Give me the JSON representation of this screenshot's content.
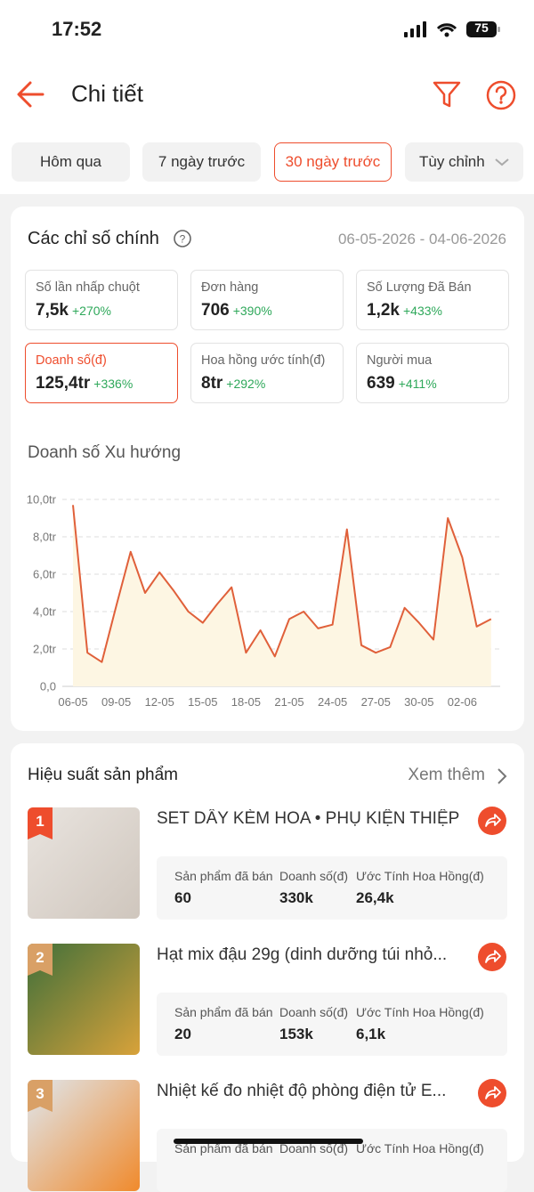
{
  "status_bar": {
    "time": "17:52",
    "battery": "75"
  },
  "header": {
    "title": "Chi tiết"
  },
  "tabs": {
    "items": [
      "Hôm qua",
      "7 ngày trước",
      "30 ngày trước",
      "Tùy chỉnh"
    ],
    "active": 2
  },
  "metrics": {
    "title": "Các chỉ số chính",
    "date_range": "06-05-2026 - 04-06-2026",
    "selected": 3,
    "cards": [
      {
        "label": "Số lần nhấp chuột",
        "value": "7,5k",
        "change": "+270%"
      },
      {
        "label": "Đơn hàng",
        "value": "706",
        "change": "+390%"
      },
      {
        "label": "Số Lượng Đã Bán",
        "value": "1,2k",
        "change": "+433%"
      },
      {
        "label": "Doanh số(đ)",
        "value": "125,4tr",
        "change": "+336%"
      },
      {
        "label": "Hoa hồng ước tính(đ)",
        "value": "8tr",
        "change": "+292%"
      },
      {
        "label": "Người mua",
        "value": "639",
        "change": "+411%"
      }
    ]
  },
  "chart_data": {
    "type": "line",
    "title": "Doanh số Xu hướng",
    "categories": [
      "06-05",
      null,
      null,
      "09-05",
      null,
      null,
      "12-05",
      null,
      null,
      "15-05",
      null,
      null,
      "18-05",
      null,
      null,
      "21-05",
      null,
      null,
      "24-05",
      null,
      null,
      "27-05",
      null,
      null,
      "30-05",
      null,
      null,
      "02-06",
      null,
      null
    ],
    "values": [
      9.7,
      1.8,
      1.3,
      4.3,
      7.2,
      5.0,
      6.1,
      5.1,
      4.0,
      3.4,
      4.4,
      5.3,
      1.8,
      3.0,
      1.6,
      3.6,
      4.0,
      3.1,
      3.3,
      8.4,
      2.2,
      1.8,
      2.1,
      4.2,
      3.4,
      2.5,
      9.0,
      6.9,
      3.2,
      3.6
    ],
    "color": "#e0603a",
    "area_color": "#fdf6e3",
    "ylim": [
      0,
      10
    ],
    "yticks": [
      {
        "value": 0,
        "label": "0,0"
      },
      {
        "value": 2,
        "label": "2,0tr"
      },
      {
        "value": 4,
        "label": "4,0tr"
      },
      {
        "value": 6,
        "label": "6,0tr"
      },
      {
        "value": 8,
        "label": "8,0tr"
      },
      {
        "value": 10,
        "label": "10,0tr"
      }
    ],
    "grid": true
  },
  "products": {
    "title": "Hiệu suất sản phẩm",
    "more": "Xem thêm",
    "items": [
      {
        "rank": "1",
        "name": "SET DÂY KÈM HOA • PHỤ KIỆN THIỆP",
        "stats": [
          {
            "label": "Sản phẩm đã bán",
            "value": "60"
          },
          {
            "label": "Doanh số(đ)",
            "value": "330k"
          },
          {
            "label": "Ước Tính Hoa Hồng(đ)",
            "value": "26,4k"
          }
        ]
      },
      {
        "rank": "2",
        "name": "Hạt mix đậu 29g (dinh dưỡng túi nhỏ...",
        "stats": [
          {
            "label": "Sản phẩm đã bán",
            "value": "20"
          },
          {
            "label": "Doanh số(đ)",
            "value": "153k"
          },
          {
            "label": "Ước Tính Hoa Hồng(đ)",
            "value": "6,1k"
          }
        ]
      },
      {
        "rank": "3",
        "name": "Nhiệt kế đo nhiệt độ phòng điện tử E...",
        "stats": [
          {
            "label": "Sản phẩm đã bán"
          },
          {
            "label": "Doanh số(đ)"
          },
          {
            "label": "Ước Tính Hoa Hồng(đ)"
          }
        ]
      }
    ]
  }
}
